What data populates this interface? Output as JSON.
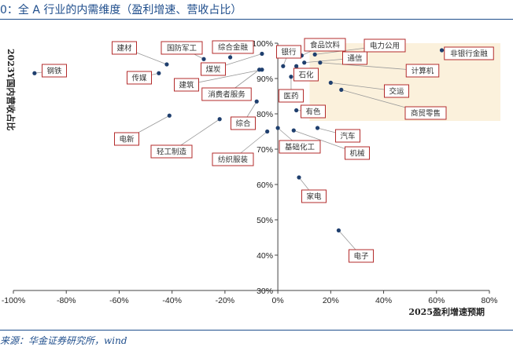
{
  "title": "0：全 A 行业的内需维度（盈利增速、营收占比）",
  "source": "来源：华金证券研究所，wind",
  "colors": {
    "accent": "#1f4e8c",
    "box_border": "#b32b2b",
    "highlight": "#fbf1dc",
    "point": "#1f3f6e",
    "leader": "#999999"
  },
  "chart_data": {
    "type": "scatter",
    "xlabel": "2025盈利增速预期",
    "ylabel": "2023Y国内营收占比",
    "xlim": [
      -1.0,
      0.8
    ],
    "ylim": [
      0.3,
      1.0
    ],
    "x_ticks": [
      "-100%",
      "-80%",
      "-60%",
      "-40%",
      "-20%",
      "0%",
      "20%",
      "40%",
      "60%",
      "80%"
    ],
    "y_ticks": [
      "30%",
      "40%",
      "50%",
      "60%",
      "70%",
      "80%",
      "90%",
      "100%"
    ],
    "highlight_region": {
      "x": [
        0.12,
        0.8
      ],
      "y": [
        0.78,
        1.0
      ]
    },
    "points": [
      {
        "name": "钢铁",
        "x": -0.92,
        "y": 0.915
      },
      {
        "name": "建材",
        "x": -0.42,
        "y": 0.94
      },
      {
        "name": "传媒",
        "x": -0.45,
        "y": 0.915
      },
      {
        "name": "国防军工",
        "x": -0.28,
        "y": 0.955
      },
      {
        "name": "综合金融",
        "x": -0.18,
        "y": 0.96
      },
      {
        "name": "煤炭",
        "x": -0.06,
        "y": 0.97
      },
      {
        "name": "建筑",
        "x": -0.06,
        "y": 0.925
      },
      {
        "name": "消费者服务",
        "x": -0.07,
        "y": 0.925
      },
      {
        "name": "综合",
        "x": -0.08,
        "y": 0.835
      },
      {
        "name": "电新",
        "x": -0.41,
        "y": 0.795
      },
      {
        "name": "轻工制造",
        "x": -0.22,
        "y": 0.785
      },
      {
        "name": "纺织服装",
        "x": -0.04,
        "y": 0.75
      },
      {
        "name": "银行",
        "x": 0.02,
        "y": 0.935
      },
      {
        "name": "食品饮料",
        "x": 0.09,
        "y": 0.965
      },
      {
        "name": "电力公用",
        "x": 0.14,
        "y": 0.968
      },
      {
        "name": "通信",
        "x": 0.1,
        "y": 0.945
      },
      {
        "name": "非银行金融",
        "x": 0.62,
        "y": 0.98
      },
      {
        "name": "计算机",
        "x": 0.16,
        "y": 0.945
      },
      {
        "name": "石化",
        "x": 0.07,
        "y": 0.935
      },
      {
        "name": "医药",
        "x": 0.05,
        "y": 0.905
      },
      {
        "name": "交运",
        "x": 0.2,
        "y": 0.888
      },
      {
        "name": "商贸零售",
        "x": 0.24,
        "y": 0.868
      },
      {
        "name": "有色",
        "x": 0.07,
        "y": 0.81
      },
      {
        "name": "汽车",
        "x": 0.15,
        "y": 0.76
      },
      {
        "name": "基础化工",
        "x": 0.0,
        "y": 0.76
      },
      {
        "name": "机械",
        "x": 0.06,
        "y": 0.753
      },
      {
        "name": "家电",
        "x": 0.08,
        "y": 0.62
      },
      {
        "name": "电子",
        "x": 0.23,
        "y": 0.47
      }
    ]
  }
}
